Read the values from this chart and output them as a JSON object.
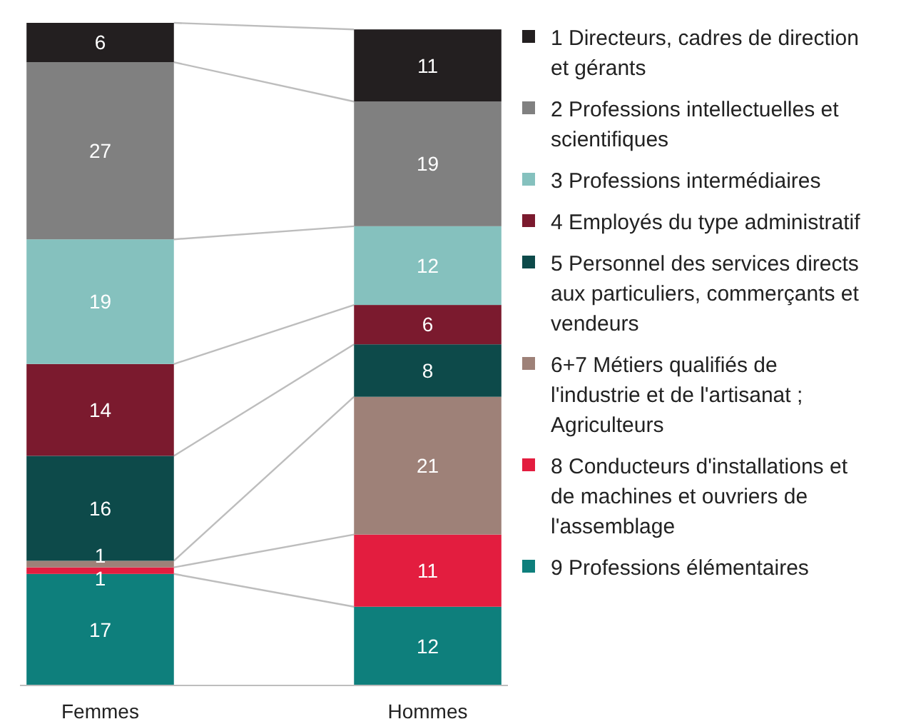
{
  "chart_data": {
    "type": "bar",
    "stacked": true,
    "data_labels": true,
    "legend": "right",
    "categories": [
      "Femmes",
      "Hommes"
    ],
    "series": [
      {
        "name": "9 Professions élémentaires",
        "color": "#0e7f7c",
        "values": [
          17,
          12
        ]
      },
      {
        "name": "8 Conducteurs d'installations et de machines et ouvriers de l'assemblage",
        "color": "#e31d3f",
        "values": [
          1,
          11
        ]
      },
      {
        "name": "6+7 Métiers qualifiés de l'industrie et de l'artisanat ; Agriculteurs",
        "color": "#9e8178",
        "values": [
          1,
          21
        ]
      },
      {
        "name": "5 Personnel des services directs aux particuliers, commerçants et vendeurs",
        "color": "#0d4a4a",
        "values": [
          16,
          8
        ]
      },
      {
        "name": "4 Employés du type administratif",
        "color": "#7b1a2e",
        "values": [
          14,
          6
        ]
      },
      {
        "name": "3 Professions intermédiaires",
        "color": "#85c1be",
        "values": [
          19,
          12
        ]
      },
      {
        "name": "2 Professions intellectuelles et scientifiques",
        "color": "#808080",
        "values": [
          27,
          19
        ]
      },
      {
        "name": "1 Directeurs, cadres de direction et gérants",
        "color": "#231f20",
        "values": [
          6,
          11
        ]
      }
    ]
  }
}
